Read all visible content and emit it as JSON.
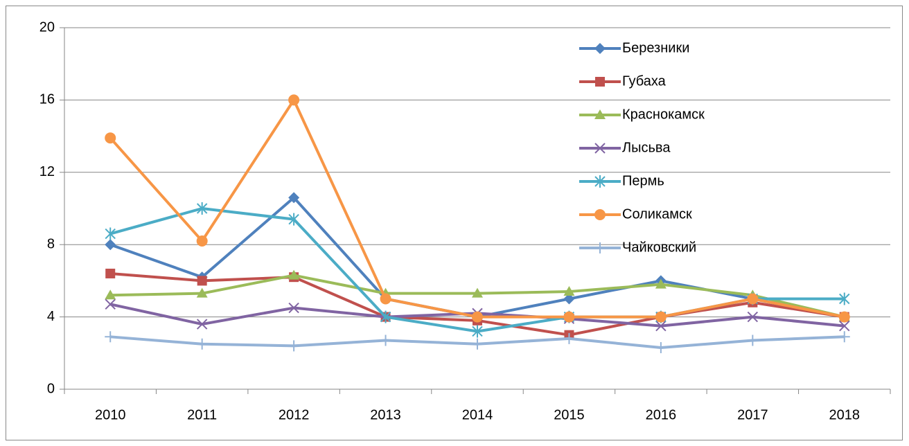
{
  "chart_data": {
    "type": "line",
    "categories": [
      "2010",
      "2011",
      "2012",
      "2013",
      "2014",
      "2015",
      "2016",
      "2017",
      "2018"
    ],
    "series": [
      {
        "name": "Березники",
        "color": "#4f81bd",
        "marker": "diamond",
        "values": [
          8.0,
          6.2,
          10.6,
          5.0,
          4.0,
          5.0,
          6.0,
          5.0,
          4.0
        ]
      },
      {
        "name": "Губаха",
        "color": "#c0504d",
        "marker": "square",
        "values": [
          6.4,
          6.0,
          6.2,
          4.0,
          3.8,
          3.0,
          4.0,
          4.8,
          4.0
        ]
      },
      {
        "name": "Краснокамск",
        "color": "#9bbb59",
        "marker": "triangle",
        "values": [
          5.2,
          5.3,
          6.3,
          5.3,
          5.3,
          5.4,
          5.8,
          5.2,
          4.0
        ]
      },
      {
        "name": "Лысьва",
        "color": "#8064a2",
        "marker": "x",
        "values": [
          4.7,
          3.6,
          4.5,
          4.0,
          4.2,
          3.9,
          3.5,
          4.0,
          3.5
        ]
      },
      {
        "name": "Пермь",
        "color": "#4bacc6",
        "marker": "asterisk",
        "values": [
          8.6,
          10.0,
          9.4,
          4.0,
          3.2,
          4.0,
          4.0,
          5.0,
          5.0
        ]
      },
      {
        "name": "Соликамск",
        "color": "#f79646",
        "marker": "circle",
        "values": [
          13.9,
          8.2,
          16.0,
          5.0,
          4.0,
          4.0,
          4.0,
          5.0,
          4.0
        ]
      },
      {
        "name": "Чайковский",
        "color": "#95b3d7",
        "marker": "plus",
        "values": [
          2.9,
          2.5,
          2.4,
          2.7,
          2.5,
          2.8,
          2.3,
          2.7,
          2.9
        ]
      }
    ],
    "ylim": [
      0,
      20
    ],
    "yticks": [
      0,
      4,
      8,
      12,
      16,
      20
    ],
    "grid": true,
    "legend": "top-right"
  }
}
